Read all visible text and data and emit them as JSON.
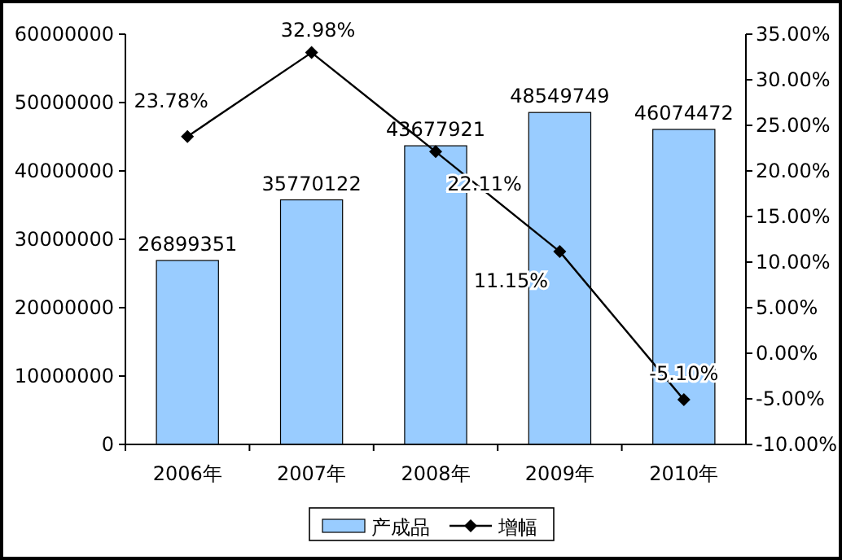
{
  "chart_data": {
    "type": "bar",
    "categories": [
      "2006年",
      "2007年",
      "2008年",
      "2009年",
      "2010年"
    ],
    "series": [
      {
        "name": "产成品",
        "color": "#99ccff",
        "values": [
          26899351,
          35770122,
          43677921,
          48549749,
          46074472
        ],
        "value_labels": [
          "26899351",
          "35770122",
          "43677921",
          "48549749",
          "46074472"
        ]
      },
      {
        "name": "增幅",
        "type": "line",
        "axis": "y2",
        "color": "#000000",
        "marker": "diamond",
        "values": [
          23.78,
          32.98,
          22.11,
          11.15,
          -5.1
        ],
        "value_labels": [
          "23.78%",
          "32.98%",
          "22.11%",
          "11.15%",
          "-5.10%"
        ]
      }
    ],
    "ylim": [
      0,
      60000000
    ],
    "yticks": [
      0,
      10000000,
      20000000,
      30000000,
      40000000,
      50000000,
      60000000
    ],
    "y2lim": [
      -10,
      35
    ],
    "y2ticks": [
      {
        "value": -10,
        "label": "-10.00%"
      },
      {
        "value": -5,
        "label": "-5.00%"
      },
      {
        "value": 0,
        "label": "0.00%"
      },
      {
        "value": 5,
        "label": "5.00%"
      },
      {
        "value": 10,
        "label": "10.00%"
      },
      {
        "value": 15,
        "label": "15.00%"
      },
      {
        "value": 20,
        "label": "20.00%"
      },
      {
        "value": 25,
        "label": "25.00%"
      },
      {
        "value": 30,
        "label": "30.00%"
      },
      {
        "value": 35,
        "label": "35.00%"
      }
    ],
    "legend": "bottom",
    "grid": false
  }
}
